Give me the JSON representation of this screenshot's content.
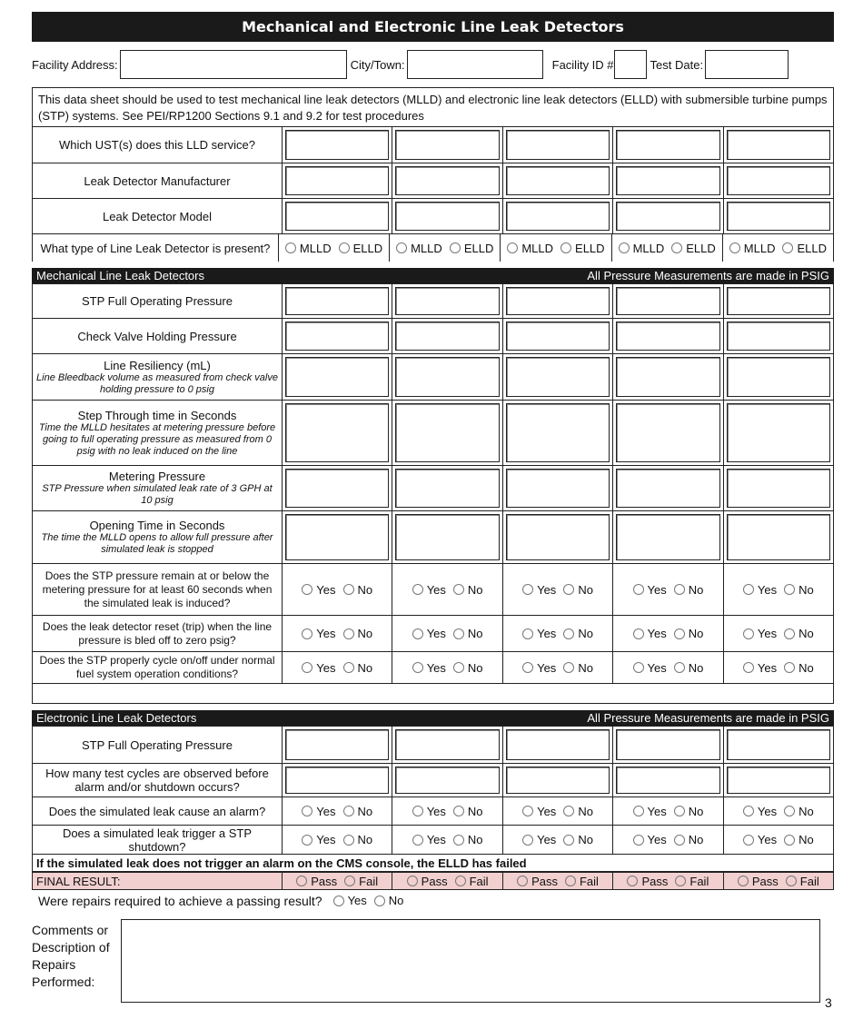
{
  "title": "Mechanical and Electronic Line Leak Detectors",
  "facility": {
    "address_label": "Facility Address:",
    "city_label": "City/Town:",
    "id_label": "Facility ID #",
    "date_label": "Test Date:"
  },
  "info": "This data sheet should be used to test mechanical line leak detectors (MLLD) and electronic line leak detectors (ELLD) with submersible turbine pumps (STP) systems. See PEI/RP1200 Sections 9.1 and 9.2 for test procedures",
  "general_rows": [
    {
      "label": "Which UST(s) does this LLD service?",
      "type": "input",
      "h": 40
    },
    {
      "label": "Leak Detector Manufacturer",
      "type": "input",
      "h": 39
    },
    {
      "label": "Leak Detector Model",
      "type": "input",
      "h": 39
    },
    {
      "label": "What type of Line Leak Detector is present?",
      "type": "radio",
      "options": [
        "MLLD",
        "ELLD"
      ],
      "h": 31
    }
  ],
  "mechanical": {
    "title": "Mechanical Line Leak Detectors",
    "units": "All Pressure Measurements are made in PSIG",
    "rows": [
      {
        "label": "STP Full Operating Pressure",
        "type": "input",
        "h": 38
      },
      {
        "label": "Check Valve Holding Pressure",
        "type": "input",
        "h": 39
      },
      {
        "label": "Line Resiliency (mL)",
        "sub": "Line Bleedback volume as measured from check valve holding pressure to 0 psig",
        "type": "input",
        "h": 51
      },
      {
        "label": "Step Through time in Seconds",
        "sub": "Time the MLLD hesitates at metering pressure before going to full operating pressure as measured from 0 psig with no leak induced on the line",
        "type": "input",
        "h": 72
      },
      {
        "label": "Metering Pressure",
        "sub": "STP Pressure when simulated leak rate of 3 GPH at 10 psig",
        "type": "input",
        "h": 50
      },
      {
        "label": "Opening Time in Seconds",
        "sub": "The time the MLLD opens to allow full pressure after simulated leak is stopped",
        "type": "input",
        "h": 58
      },
      {
        "label": "Does the STP pressure remain at or below the metering pressure for at least 60 seconds when the simulated leak is induced?",
        "type": "radio",
        "options": [
          "Yes",
          "No"
        ],
        "h": 57,
        "small": true
      },
      {
        "label": "Does the leak detector reset (trip) when the line pressure is bled off to zero psig?",
        "type": "radio",
        "options": [
          "Yes",
          "No"
        ],
        "h": 40,
        "small": true
      },
      {
        "label": "Does the STP properly cycle on/off under normal fuel system operation conditions?",
        "type": "radio",
        "options": [
          "Yes",
          "No"
        ],
        "h": 35,
        "small": true
      },
      {
        "label": "",
        "type": "blank",
        "h": 23
      }
    ]
  },
  "electronic": {
    "title": "Electronic Line Leak Detectors",
    "units": "All Pressure Measurements are made in PSIG",
    "rows": [
      {
        "label": "STP Full Operating Pressure",
        "type": "input",
        "h": 41
      },
      {
        "label": "How many test cycles are observed before alarm and/or shutdown occurs?",
        "type": "input",
        "h": 37
      },
      {
        "label": "Does the simulated leak cause an alarm?",
        "type": "radio",
        "options": [
          "Yes",
          "No"
        ],
        "h": 31
      },
      {
        "label": "Does a simulated leak trigger a STP shutdown?",
        "type": "radio",
        "options": [
          "Yes",
          "No"
        ],
        "h": 32
      }
    ],
    "note": "If the simulated leak does not trigger an alarm on the CMS console, the ELLD has failed",
    "final_label": "FINAL RESULT:",
    "final_options": [
      "Pass",
      "Fail"
    ]
  },
  "repairs": {
    "question": "Were repairs required to achieve a passing result?",
    "options": [
      "Yes",
      "No"
    ]
  },
  "comments_label": "Comments or Description of Repairs Performed:",
  "page_number": "3",
  "colors": {
    "header": "#1a1a1a",
    "final_bg": "#f2d0d0"
  }
}
